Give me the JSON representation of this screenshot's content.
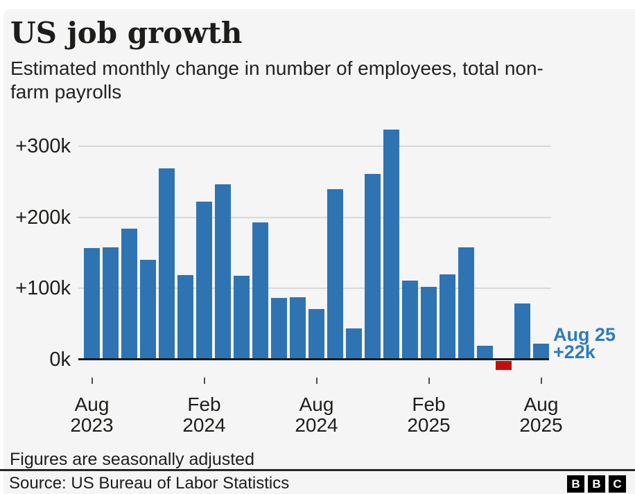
{
  "page": {
    "background": "#ffffff",
    "card_background": "#f5f5f5"
  },
  "header": {
    "title": "US job growth",
    "subtitle": "Estimated monthly change in number of employees, total non-farm payrolls"
  },
  "chart_data": {
    "type": "bar",
    "title": "US job growth",
    "subtitle": "Estimated monthly change in number of employees, total non-farm payrolls",
    "unit": "thousands of jobs (k), monthly change",
    "categories": [
      "Aug 2023",
      "Sep 2023",
      "Oct 2023",
      "Nov 2023",
      "Dec 2023",
      "Jan 2024",
      "Feb 2024",
      "Mar 2024",
      "Apr 2024",
      "May 2024",
      "Jun 2024",
      "Jul 2024",
      "Aug 2024",
      "Sep 2024",
      "Oct 2024",
      "Nov 2024",
      "Dec 2024",
      "Jan 2025",
      "Feb 2025",
      "Mar 2025",
      "Apr 2025",
      "May 2025",
      "Jun 2025",
      "Jul 2025",
      "Aug 2025"
    ],
    "values": [
      157,
      158,
      184,
      140,
      269,
      119,
      222,
      246,
      118,
      193,
      87,
      88,
      71,
      240,
      44,
      261,
      323,
      111,
      102,
      120,
      158,
      19,
      -13,
      79,
      22
    ],
    "bar_color": "#2f74b2",
    "negative_bar_color": "#c50d0d",
    "grid": "horizontal",
    "legend_position": "none",
    "ylim": [
      -25,
      335
    ],
    "yticks": [
      {
        "value": 0,
        "label": "0k"
      },
      {
        "value": 100,
        "label": "+100k"
      },
      {
        "value": 200,
        "label": "+200k"
      },
      {
        "value": 300,
        "label": "+300k"
      }
    ],
    "xticks": [
      {
        "index": 0,
        "line1": "Aug",
        "line2": "2023"
      },
      {
        "index": 6,
        "line1": "Feb",
        "line2": "2024"
      },
      {
        "index": 12,
        "line1": "Aug",
        "line2": "2024"
      },
      {
        "index": 18,
        "line1": "Feb",
        "line2": "2025"
      },
      {
        "index": 24,
        "line1": "Aug",
        "line2": "2025"
      }
    ],
    "annotation": {
      "line1": "Aug 25",
      "line2": "+22k",
      "color": "#2e7bbd"
    }
  },
  "footer": {
    "note": "Figures are seasonally adjusted",
    "source": "Source: US Bureau of Labor Statistics",
    "logo_letters": [
      "B",
      "B",
      "C"
    ]
  }
}
